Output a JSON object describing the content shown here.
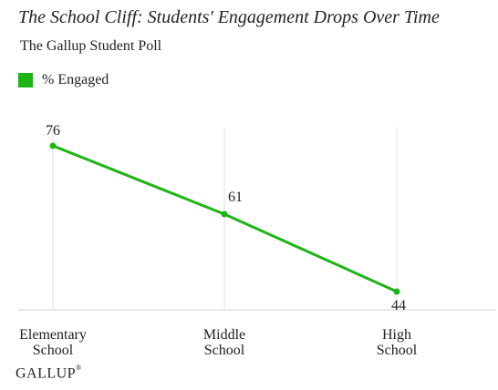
{
  "chart_data": {
    "type": "line",
    "title": "The School Cliff: Students' Engagement Drops Over Time",
    "subtitle": "The Gallup Student Poll",
    "categories": [
      "Elementary School",
      "Middle School",
      "High School"
    ],
    "category_lines": [
      [
        "Elementary",
        "School"
      ],
      [
        "Middle",
        "School"
      ],
      [
        "High",
        "School"
      ]
    ],
    "series": [
      {
        "name": "% Engaged",
        "values": [
          76,
          61,
          44
        ],
        "labels": [
          "76",
          "61",
          "44"
        ],
        "color": "#1db515"
      }
    ],
    "ylim": [
      40,
      80
    ],
    "legend_position": "top-left",
    "grid": "vertical"
  },
  "footer": {
    "brand": "GALLUP",
    "brand_mark": "®"
  }
}
